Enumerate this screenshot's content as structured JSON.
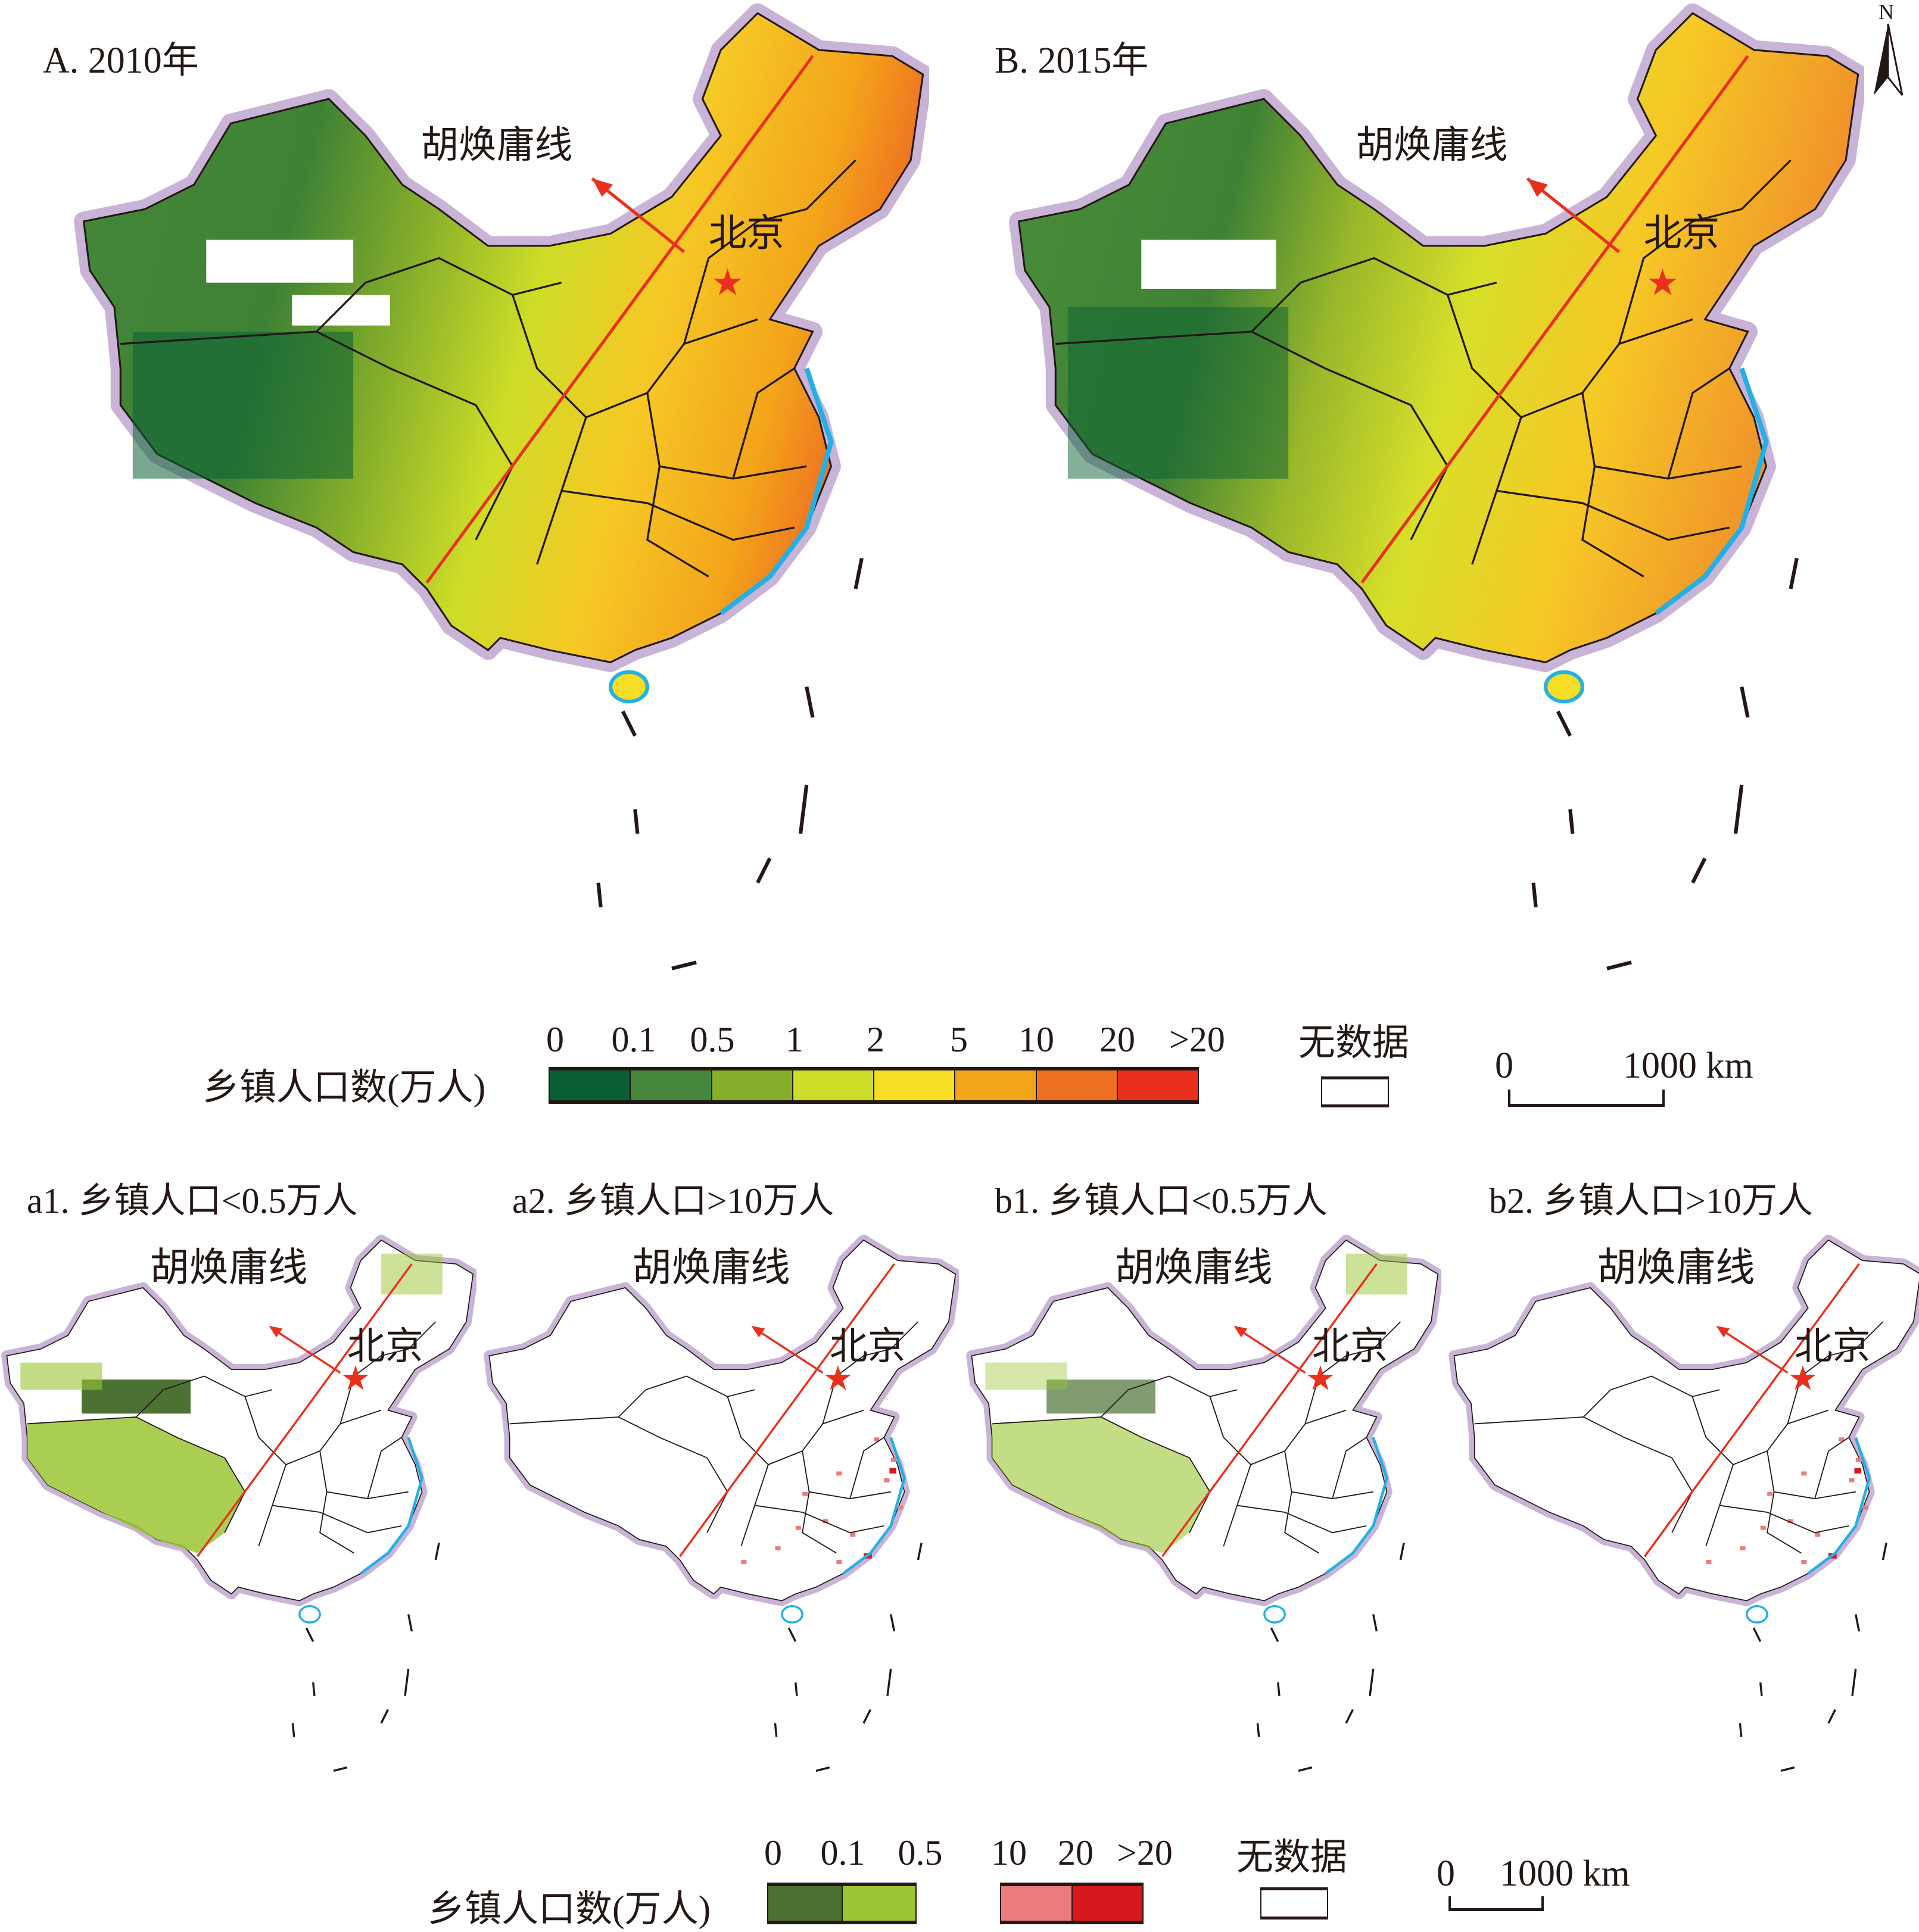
{
  "maps": {
    "A": {
      "title": "A. 2010年",
      "hu_line": "胡焕庸线",
      "capital": "北京"
    },
    "B": {
      "title": "B. 2015年",
      "hu_line": "胡焕庸线",
      "capital": "北京"
    },
    "a1": {
      "title": "a1. 乡镇人口<0.5万人",
      "hu_line": "胡焕庸线",
      "capital": "北京"
    },
    "a2": {
      "title": "a2. 乡镇人口>10万人",
      "hu_line": "胡焕庸线",
      "capital": "北京"
    },
    "b1": {
      "title": "b1. 乡镇人口<0.5万人",
      "hu_line": "胡焕庸线",
      "capital": "北京"
    },
    "b2": {
      "title": "b2. 乡镇人口>10万人",
      "hu_line": "胡焕庸线",
      "capital": "北京"
    }
  },
  "north_arrow": {
    "label": "N",
    "icon": "north-arrow-icon"
  },
  "legend_main": {
    "label": "乡镇人口数(万人)",
    "ticks": [
      "0",
      "0.1",
      "0.5",
      "1",
      "2",
      "5",
      "10",
      "20",
      ">20"
    ],
    "colors": [
      "#0a6034",
      "#44873a",
      "#85ae2a",
      "#cddd27",
      "#f6dd26",
      "#f3a51a",
      "#ee7022",
      "#e8301d"
    ],
    "no_data_label": "无数据",
    "scale_start": "0",
    "scale_end": "1000 km"
  },
  "legend_sub": {
    "label": "乡镇人口数(万人)",
    "low_ticks": [
      "0",
      "0.1",
      "0.5"
    ],
    "high_ticks": [
      "10",
      "20",
      ">20"
    ],
    "low_colors": [
      "#4b7233",
      "#9ac633"
    ],
    "high_colors": [
      "#ec7b7b",
      "#d7181c"
    ],
    "no_data_label": "无数据",
    "scale_start": "0",
    "scale_end": "1000 km"
  },
  "colors": {
    "border_halo": "#c9b3d6",
    "coast": "#22b0e6",
    "hu_line": "#e8301d",
    "capital_star": "#e8301d"
  }
}
